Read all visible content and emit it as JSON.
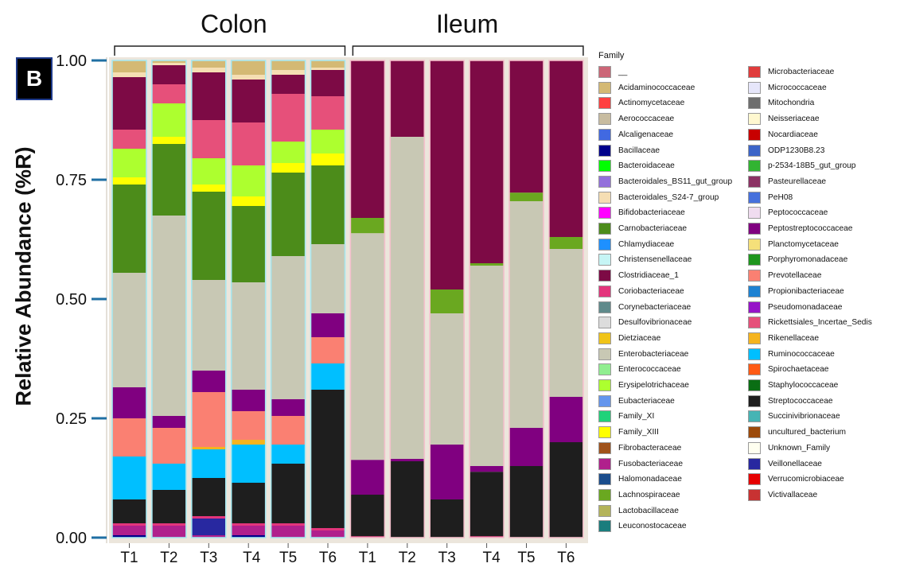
{
  "panel_label": "B",
  "group_labels": [
    "Colon",
    "Ileum"
  ],
  "chart_data": {
    "type": "bar",
    "stacked": true,
    "ylabel": "Relative Abundance (%R)",
    "ylim": [
      0,
      1
    ],
    "yticks": [
      "0.00",
      "0.25",
      "0.50",
      "0.75",
      "1.00"
    ],
    "categories": [
      "T1",
      "T2",
      "T3",
      "T4",
      "T5",
      "T6",
      "T1",
      "T2",
      "T3",
      "T4",
      "T5",
      "T6"
    ],
    "groups": [
      {
        "name": "Colon",
        "bars": [
          0,
          1,
          2,
          3,
          4,
          5
        ]
      },
      {
        "name": "Ileum",
        "bars": [
          6,
          7,
          8,
          9,
          10,
          11
        ]
      }
    ],
    "legend": {
      "title": "Family",
      "placement": "right",
      "entries": [
        {
          "name": "__",
          "color": "#cc6677"
        },
        {
          "name": "Acidaminococcaceae",
          "color": "#d4b974"
        },
        {
          "name": "Actinomycetaceae",
          "color": "#ff4040"
        },
        {
          "name": "Aerococcaceae",
          "color": "#c8bca0"
        },
        {
          "name": "Alcaligenaceae",
          "color": "#4169e1"
        },
        {
          "name": "Bacillaceae",
          "color": "#00008b"
        },
        {
          "name": "Bacteroidaceae",
          "color": "#00ff00"
        },
        {
          "name": "Bacteroidales_BS11_gut_group",
          "color": "#9370db"
        },
        {
          "name": "Bacteroidales_S24-7_group",
          "color": "#f5deb3"
        },
        {
          "name": "Bifidobacteriaceae",
          "color": "#ff00ff"
        },
        {
          "name": "Carnobacteriaceae",
          "color": "#4c8c1a"
        },
        {
          "name": "Chlamydiaceae",
          "color": "#1e90ff"
        },
        {
          "name": "Christensenellaceae",
          "color": "#c6f5f5"
        },
        {
          "name": "Clostridiaceae_1",
          "color": "#7d0a45"
        },
        {
          "name": "Coriobacteriaceae",
          "color": "#e3357c"
        },
        {
          "name": "Corynebacteriaceae",
          "color": "#5f8a8b"
        },
        {
          "name": "Desulfovibrionaceae",
          "color": "#dcdcdc"
        },
        {
          "name": "Dietziaceae",
          "color": "#f0c419"
        },
        {
          "name": "Enterobacteriaceae",
          "color": "#c8c8b4"
        },
        {
          "name": "Enterococcaceae",
          "color": "#90ee90"
        },
        {
          "name": "Erysipelotrichaceae",
          "color": "#adff2f"
        },
        {
          "name": "Eubacteriaceae",
          "color": "#6495ed"
        },
        {
          "name": "Family_XI",
          "color": "#20d27a"
        },
        {
          "name": "Family_XIII",
          "color": "#ffff00"
        },
        {
          "name": "Fibrobacteraceae",
          "color": "#a0521a"
        },
        {
          "name": "Fusobacteriaceae",
          "color": "#b0208c"
        },
        {
          "name": "Halomonadaceae",
          "color": "#1a4d8c"
        },
        {
          "name": "Lachnospiraceae",
          "color": "#6aa820"
        },
        {
          "name": "Lactobacillaceae",
          "color": "#b4b45a"
        },
        {
          "name": "Leuconostocaceae",
          "color": "#1a7d7d"
        },
        {
          "name": "Microbacteriaceae",
          "color": "#e03c3c"
        },
        {
          "name": "Micrococcaceae",
          "color": "#e6e6fa"
        },
        {
          "name": "Mitochondria",
          "color": "#6e6e6e"
        },
        {
          "name": "Neisseriaceae",
          "color": "#fff8d0"
        },
        {
          "name": "Nocardiaceae",
          "color": "#c80000"
        },
        {
          "name": "ODP1230B8.23",
          "color": "#3c64c8"
        },
        {
          "name": "p-2534-18B5_gut_group",
          "color": "#32b432"
        },
        {
          "name": "Pasteurellaceae",
          "color": "#8c3264"
        },
        {
          "name": "PeH08",
          "color": "#4670dc"
        },
        {
          "name": "Peptococcaceae",
          "color": "#f0dcf0"
        },
        {
          "name": "Peptostreptococcaceae",
          "color": "#800080"
        },
        {
          "name": "Planctomycetaceae",
          "color": "#f5e07a"
        },
        {
          "name": "Porphyromonadaceae",
          "color": "#1e961e"
        },
        {
          "name": "Prevotellaceae",
          "color": "#fa8072"
        },
        {
          "name": "Propionibacteriaceae",
          "color": "#1e82d2"
        },
        {
          "name": "Pseudomonadaceae",
          "color": "#9614c8"
        },
        {
          "name": "Rickettsiales_Incertae_Sedis",
          "color": "#e6507a"
        },
        {
          "name": "Rikenellaceae",
          "color": "#f5b41e"
        },
        {
          "name": "Ruminococcaceae",
          "color": "#00bfff"
        },
        {
          "name": "Spirochaetaceae",
          "color": "#ff5a14"
        },
        {
          "name": "Staphylococcaceae",
          "color": "#0a6e14"
        },
        {
          "name": "Streptococcaceae",
          "color": "#1e1e1e"
        },
        {
          "name": "Succinivibrionaceae",
          "color": "#46b4b4"
        },
        {
          "name": "uncultured_bacterium",
          "color": "#9c4a0a"
        },
        {
          "name": "Unknown_Family",
          "color": "#fffff0"
        },
        {
          "name": "Veillonellaceae",
          "color": "#2828a0"
        },
        {
          "name": "Verrucomicrobiaceae",
          "color": "#e60000"
        },
        {
          "name": "Victivallaceae",
          "color": "#c83232"
        }
      ]
    },
    "series": [
      {
        "name": "Bacillaceae",
        "values": [
          0.005,
          0.0,
          0.0,
          0.005,
          0.0,
          0.0,
          0.0,
          0.0,
          0.0,
          0.0,
          0.0,
          0.0
        ]
      },
      {
        "name": "Fusobacteriaceae",
        "values": [
          0.02,
          0.025,
          0.005,
          0.02,
          0.025,
          0.015,
          0.0,
          0.0,
          0.0,
          0.0,
          0.0,
          0.0
        ]
      },
      {
        "name": "Veillonellaceae",
        "values": [
          0.0,
          0.0,
          0.035,
          0.0,
          0.0,
          0.0,
          0.0,
          0.0,
          0.0,
          0.0,
          0.0,
          0.0
        ]
      },
      {
        "name": "Coriobacteriaceae",
        "values": [
          0.005,
          0.005,
          0.005,
          0.005,
          0.005,
          0.005,
          0.003,
          0.0,
          0.0,
          0.003,
          0.0,
          0.0
        ]
      },
      {
        "name": "Streptococcaceae",
        "values": [
          0.05,
          0.07,
          0.08,
          0.085,
          0.125,
          0.29,
          0.087,
          0.16,
          0.08,
          0.135,
          0.15,
          0.2
        ]
      },
      {
        "name": "Ruminococcaceae",
        "values": [
          0.09,
          0.055,
          0.06,
          0.08,
          0.04,
          0.055,
          0.0,
          0.0,
          0.0,
          0.0,
          0.0,
          0.0
        ]
      },
      {
        "name": "Rikenellaceae",
        "values": [
          0.0,
          0.0,
          0.005,
          0.01,
          0.0,
          0.0,
          0.0,
          0.0,
          0.0,
          0.0,
          0.0,
          0.0
        ]
      },
      {
        "name": "Prevotellaceae",
        "values": [
          0.08,
          0.075,
          0.115,
          0.06,
          0.06,
          0.055,
          0.0,
          0.0,
          0.0,
          0.0,
          0.0,
          0.0
        ]
      },
      {
        "name": "Peptostreptococcaceae",
        "values": [
          0.065,
          0.025,
          0.045,
          0.045,
          0.035,
          0.05,
          0.073,
          0.005,
          0.115,
          0.012,
          0.08,
          0.095
        ]
      },
      {
        "name": "Mitochondria",
        "values": [
          0.0,
          0.0,
          0.0,
          0.0,
          0.0,
          0.0,
          0.0,
          0.0,
          0.0,
          0.0,
          0.0,
          0.0
        ]
      },
      {
        "name": "Enterobacteriaceae",
        "values": [
          0.24,
          0.42,
          0.19,
          0.225,
          0.3,
          0.145,
          0.475,
          0.675,
          0.275,
          0.42,
          0.475,
          0.31
        ]
      },
      {
        "name": "Lachnospiraceae",
        "values": [
          0.0,
          0.0,
          0.0,
          0.0,
          0.0,
          0.0,
          0.032,
          0.0,
          0.05,
          0.005,
          0.018,
          0.025
        ]
      },
      {
        "name": "Carnobacteriaceae",
        "values": [
          0.185,
          0.15,
          0.185,
          0.16,
          0.175,
          0.165,
          0.0,
          0.0,
          0.0,
          0.0,
          0.0,
          0.0
        ]
      },
      {
        "name": "Family_XIII",
        "values": [
          0.015,
          0.015,
          0.015,
          0.02,
          0.02,
          0.025,
          0.0,
          0.0,
          0.0,
          0.0,
          0.0,
          0.0
        ]
      },
      {
        "name": "Erysipelotrichaceae",
        "values": [
          0.06,
          0.07,
          0.055,
          0.065,
          0.045,
          0.05,
          0.0,
          0.0,
          0.0,
          0.0,
          0.0,
          0.0
        ]
      },
      {
        "name": "Rickettsiales_Incertae_Sedis",
        "values": [
          0.04,
          0.04,
          0.08,
          0.09,
          0.1,
          0.07,
          0.0,
          0.0,
          0.0,
          0.0,
          0.0,
          0.0
        ]
      },
      {
        "name": "Clostridiaceae_1",
        "values": [
          0.11,
          0.04,
          0.1,
          0.09,
          0.04,
          0.055,
          0.33,
          0.16,
          0.48,
          0.425,
          0.277,
          0.37
        ]
      },
      {
        "name": "Bacteroidales_S24-7_group",
        "values": [
          0.01,
          0.005,
          0.01,
          0.01,
          0.01,
          0.005,
          0.0,
          0.0,
          0.0,
          0.0,
          0.0,
          0.0
        ]
      },
      {
        "name": "Acidaminococcaceae",
        "values": [
          0.025,
          0.005,
          0.015,
          0.03,
          0.02,
          0.015,
          0.0,
          0.0,
          0.0,
          0.0,
          0.0,
          0.0
        ]
      }
    ]
  }
}
